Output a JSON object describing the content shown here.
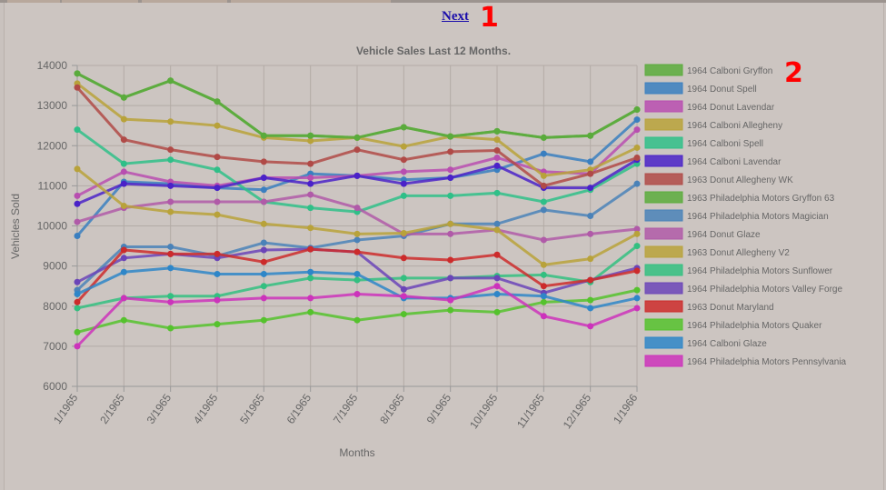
{
  "nav": {
    "next_label": "Next"
  },
  "markers": {
    "m1": "1",
    "m2": "2"
  },
  "chart_data": {
    "type": "line",
    "title": "Vehicle Sales Last 12 Months.",
    "xlabel": "Months",
    "ylabel": "Vehicles Sold",
    "ylim": [
      6000,
      14000
    ],
    "yticks": [
      6000,
      7000,
      8000,
      9000,
      10000,
      11000,
      12000,
      13000,
      14000
    ],
    "grid": true,
    "legend_position": "right",
    "categories": [
      "1/1965",
      "2/1965",
      "3/1965",
      "4/1965",
      "5/1965",
      "6/1965",
      "7/1965",
      "8/1965",
      "9/1965",
      "10/1965",
      "11/1965",
      "12/1965",
      "1/1966"
    ],
    "series": [
      {
        "name": "1964 Calboni Gryffon",
        "color": "#5aab3c",
        "values": [
          13800,
          13200,
          13620,
          13100,
          12250,
          12250,
          12200,
          12460,
          12230,
          12360,
          12200,
          12250,
          12900
        ]
      },
      {
        "name": "1964 Donut Spell",
        "color": "#3a7fc0",
        "values": [
          9750,
          11100,
          11050,
          10950,
          10900,
          11300,
          11250,
          11150,
          11200,
          11400,
          11800,
          11600,
          12650
        ]
      },
      {
        "name": "1964 Donut Lavendar",
        "color": "#b84eb0",
        "values": [
          10750,
          11350,
          11100,
          11000,
          11200,
          11200,
          11250,
          11350,
          11400,
          11700,
          11350,
          11300,
          12400
        ]
      },
      {
        "name": "1964 Calboni Allegheny",
        "color": "#b8a23a",
        "values": [
          13550,
          12660,
          12600,
          12500,
          12200,
          12120,
          12200,
          11980,
          12230,
          12150,
          11250,
          11400,
          11950
        ]
      },
      {
        "name": "1964 Calboni Spell",
        "color": "#2fbf88",
        "values": [
          12400,
          11550,
          11650,
          11400,
          10600,
          10450,
          10350,
          10750,
          10750,
          10820,
          10600,
          10900,
          11550
        ]
      },
      {
        "name": "1964 Calboni Lavendar",
        "color": "#4a22c8",
        "values": [
          10550,
          11050,
          11000,
          10950,
          11200,
          11050,
          11250,
          11050,
          11200,
          11500,
          10950,
          10950,
          11650
        ]
      },
      {
        "name": "1963 Donut Allegheny WK",
        "color": "#b04a47",
        "values": [
          13450,
          12150,
          11900,
          11720,
          11600,
          11550,
          11900,
          11650,
          11850,
          11880,
          11000,
          11300,
          11700
        ]
      },
      {
        "name": "1963 Philadelphia Motors Gryffon 63",
        "color": "#5aab3c",
        "values": [
          13800,
          13200,
          13620,
          13100,
          12250,
          12250,
          12200,
          12460,
          12230,
          12360,
          12200,
          12250,
          12900
        ]
      },
      {
        "name": "1964 Philadelphia Motors Magician",
        "color": "#4a82b8",
        "values": [
          8400,
          9480,
          9480,
          9250,
          9580,
          9450,
          9650,
          9750,
          10050,
          10050,
          10400,
          10250,
          11050
        ]
      },
      {
        "name": "1964 Donut Glaze",
        "color": "#b05aa8",
        "values": [
          10100,
          10450,
          10600,
          10600,
          10600,
          10780,
          10450,
          9800,
          9800,
          9900,
          9650,
          9800,
          9920
        ]
      },
      {
        "name": "1963 Donut Allegheny V2",
        "color": "#b8a23a",
        "values": [
          11420,
          10500,
          10350,
          10280,
          10050,
          9950,
          9800,
          9820,
          10050,
          9900,
          9030,
          9180,
          9800
        ]
      },
      {
        "name": "1964 Philadelphia Motors Sunflower",
        "color": "#33bf80",
        "values": [
          7950,
          8200,
          8250,
          8250,
          8500,
          8700,
          8650,
          8700,
          8700,
          8750,
          8780,
          8600,
          9500
        ]
      },
      {
        "name": "1964 Philadelphia Motors Valley Forge",
        "color": "#6b44b8",
        "values": [
          8600,
          9200,
          9300,
          9200,
          9400,
          9420,
          9350,
          8420,
          8700,
          8700,
          8330,
          8650,
          8950
        ]
      },
      {
        "name": "1963 Donut Maryland",
        "color": "#cc2b2b",
        "values": [
          8100,
          9400,
          9300,
          9300,
          9100,
          9420,
          9350,
          9200,
          9150,
          9280,
          8500,
          8650,
          8880
        ]
      },
      {
        "name": "1964 Philadelphia Motors Quaker",
        "color": "#55c22d",
        "values": [
          7350,
          7650,
          7450,
          7550,
          7650,
          7850,
          7650,
          7800,
          7900,
          7850,
          8100,
          8150,
          8400
        ]
      },
      {
        "name": "1964 Calboni Glaze",
        "color": "#2e86c8",
        "values": [
          8300,
          8850,
          8950,
          8800,
          8800,
          8850,
          8800,
          8200,
          8200,
          8300,
          8250,
          7950,
          8200
        ]
      },
      {
        "name": "1964 Philadelphia Motors Pennsylvania",
        "color": "#cc33bb",
        "values": [
          7000,
          8200,
          8100,
          8150,
          8200,
          8200,
          8300,
          8250,
          8150,
          8500,
          7750,
          7500,
          7950
        ]
      }
    ]
  }
}
